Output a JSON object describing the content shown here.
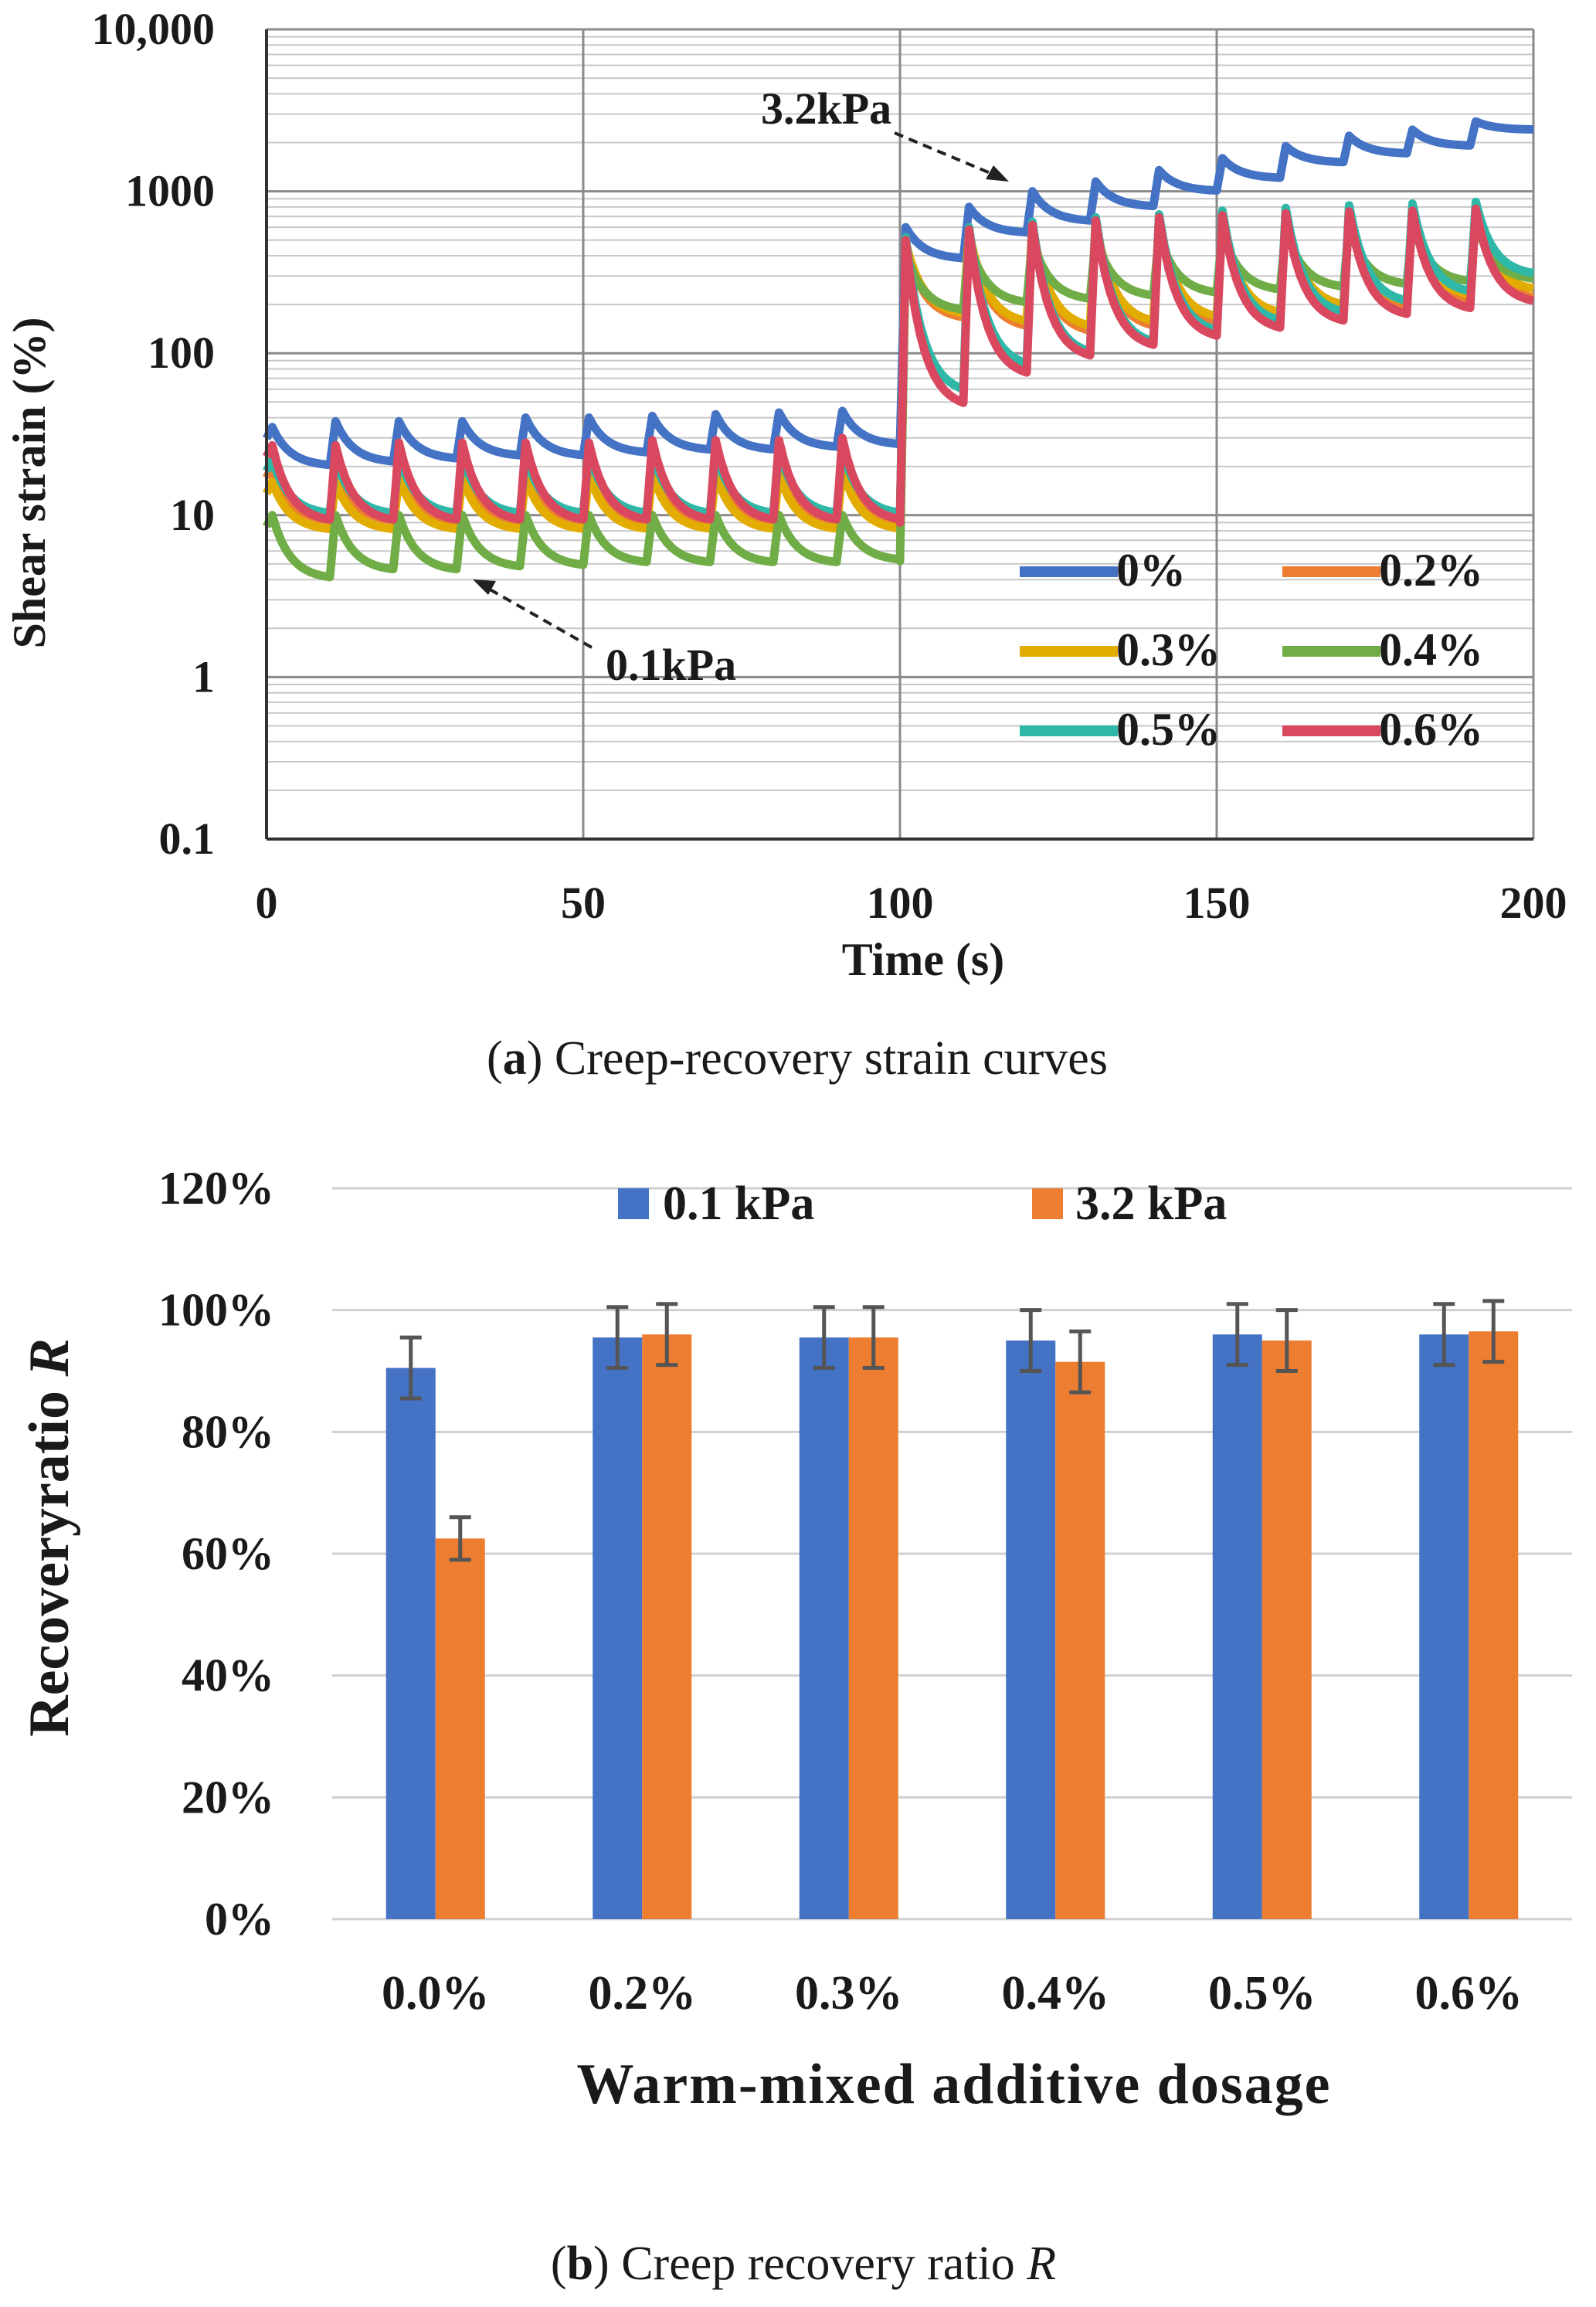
{
  "figure_a": {
    "caption_label": "a",
    "caption_text": "Creep-recovery strain curves",
    "annotation_high": "3.2kPa",
    "annotation_low": "0.1kPa"
  },
  "figure_b": {
    "caption_label": "b",
    "caption_text": "Creep recovery ratio ",
    "caption_symbol": "R"
  },
  "chart_data": [
    {
      "type": "line",
      "title": "Creep-recovery strain curves",
      "xlabel": "Time (s)",
      "ylabel": "Shear strain (%)",
      "xlim": [
        0,
        200
      ],
      "ylim": [
        0.1,
        10000
      ],
      "yscale": "log",
      "x_ticks": [
        "0",
        "50",
        "100",
        "150",
        "200"
      ],
      "y_ticks": [
        "0.1",
        "1",
        "10",
        "100",
        "1000",
        "10,000"
      ],
      "cycle_seconds": 10,
      "stress_levels_kPa": [
        0.1,
        3.2
      ],
      "legend_position": "bottom-right",
      "series": [
        {
          "name": "0%",
          "color": "#4472C4",
          "peak_low": [
            35,
            38,
            38,
            38,
            40,
            40,
            41,
            42,
            43,
            44
          ],
          "trough_low": [
            20,
            21,
            22,
            23,
            23,
            24,
            25,
            25,
            26,
            27
          ],
          "peak_high": [
            600,
            800,
            1000,
            1150,
            1350,
            1600,
            1900,
            2200,
            2400,
            2700
          ],
          "trough_high": [
            380,
            550,
            650,
            800,
            1000,
            1200,
            1500,
            1700,
            1900,
            2400
          ]
        },
        {
          "name": "0.2%",
          "color": "#ED7D31",
          "peak_low": [
            20,
            20,
            20,
            21,
            21,
            21,
            22,
            22,
            22,
            23
          ],
          "trough_low": [
            9,
            9,
            9,
            9,
            9,
            9,
            9,
            9,
            9,
            9
          ],
          "peak_high": [
            480,
            560,
            600,
            640,
            660,
            680,
            700,
            720,
            740,
            760
          ],
          "trough_high": [
            160,
            140,
            130,
            140,
            150,
            160,
            170,
            180,
            200,
            210
          ]
        },
        {
          "name": "0.3%",
          "color": "#E2AC00",
          "peak_low": [
            16,
            16,
            17,
            17,
            17,
            18,
            18,
            18,
            18,
            19
          ],
          "trough_low": [
            8,
            8,
            8,
            8,
            8,
            8,
            8,
            8,
            8,
            8
          ],
          "peak_high": [
            480,
            560,
            600,
            640,
            660,
            680,
            700,
            720,
            740,
            760
          ],
          "trough_high": [
            170,
            150,
            140,
            150,
            160,
            170,
            190,
            200,
            220,
            240
          ]
        },
        {
          "name": "0.4%",
          "color": "#70AD47",
          "peak_low": [
            10,
            10,
            10,
            10,
            10,
            10,
            10,
            10,
            10,
            10
          ],
          "trough_low": [
            4,
            4.5,
            4.5,
            4.7,
            4.8,
            5,
            5,
            5,
            5,
            5.2
          ],
          "peak_high": [
            420,
            480,
            500,
            520,
            540,
            560,
            580,
            600,
            620,
            640
          ],
          "trough_high": [
            180,
            200,
            210,
            220,
            230,
            240,
            250,
            260,
            270,
            280
          ]
        },
        {
          "name": "0.5%",
          "color": "#2FB7A8",
          "peak_low": [
            22,
            22,
            23,
            23,
            23,
            24,
            24,
            24,
            25,
            25
          ],
          "trough_low": [
            10,
            10,
            10,
            10,
            10,
            10,
            10,
            10,
            10,
            10
          ],
          "peak_high": [
            520,
            600,
            650,
            690,
            720,
            760,
            790,
            820,
            840,
            860
          ],
          "trough_high": [
            55,
            80,
            95,
            110,
            130,
            150,
            170,
            200,
            230,
            300
          ]
        },
        {
          "name": "0.6%",
          "color": "#D9485E",
          "peak_low": [
            27,
            27,
            28,
            28,
            28,
            28,
            29,
            29,
            29,
            30
          ],
          "trough_low": [
            9,
            9,
            9,
            9,
            9,
            9,
            9,
            9,
            9,
            9
          ],
          "peak_high": [
            500,
            580,
            620,
            660,
            690,
            710,
            730,
            750,
            760,
            780
          ],
          "trough_high": [
            45,
            70,
            90,
            105,
            120,
            135,
            150,
            165,
            180,
            200
          ]
        }
      ]
    },
    {
      "type": "bar",
      "title": "Creep recovery ratio R",
      "xlabel": "Warm-mixed additive dosage",
      "ylabel_text": "Recoveryratio ",
      "ylabel_symbol": "R",
      "categories": [
        "0.0%",
        "0.2%",
        "0.3%",
        "0.4%",
        "0.5%",
        "0.6%"
      ],
      "ylim": [
        0,
        120
      ],
      "y_ticks": [
        "0%",
        "20%",
        "40%",
        "60%",
        "80%",
        "100%",
        "120%"
      ],
      "legend_position": "top-center",
      "series": [
        {
          "name": "0.1 kPa",
          "color": "#4472C4",
          "values": [
            90.5,
            95.5,
            95.5,
            95,
            96,
            96
          ],
          "errors": [
            5,
            5,
            5,
            5,
            5,
            5
          ]
        },
        {
          "name": "3.2 kPa",
          "color": "#ED7D31",
          "values": [
            62.5,
            96,
            95.5,
            91.5,
            95,
            96.5
          ],
          "errors": [
            3.5,
            5,
            5,
            5,
            5,
            5
          ]
        }
      ]
    }
  ]
}
